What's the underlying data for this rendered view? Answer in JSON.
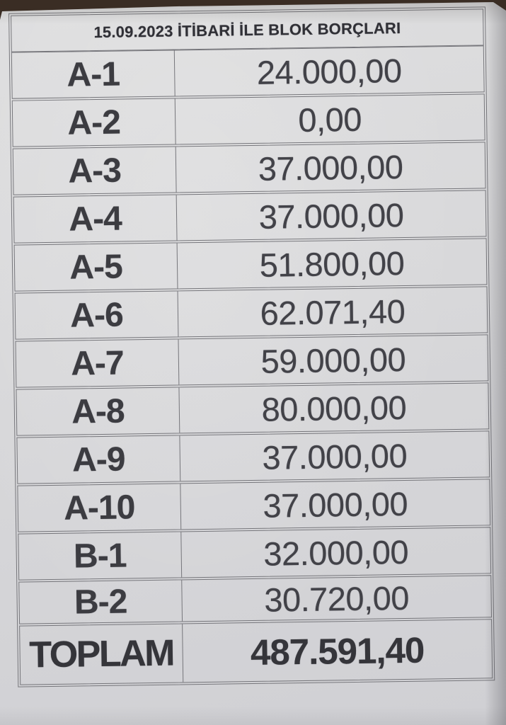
{
  "colors": {
    "background": "#3a2d24",
    "paper": "#d9d9db",
    "ink": "#3c3c41",
    "line": "#76767b"
  },
  "doc": {
    "title": "15.09.2023 İTİBARİ İLE BLOK BORÇLARI",
    "rows": [
      {
        "label": "A-1",
        "value": "24.000,00"
      },
      {
        "label": "A-2",
        "value": "0,00"
      },
      {
        "label": "A-3",
        "value": "37.000,00"
      },
      {
        "label": "A-4",
        "value": "37.000,00"
      },
      {
        "label": "A-5",
        "value": "51.800,00"
      },
      {
        "label": "A-6",
        "value": "62.071,40"
      },
      {
        "label": "A-7",
        "value": "59.000,00"
      },
      {
        "label": "A-8",
        "value": "80.000,00"
      },
      {
        "label": "A-9",
        "value": "37.000,00"
      },
      {
        "label": "A-10",
        "value": "37.000,00"
      },
      {
        "label": "B-1",
        "value": "32.000,00"
      },
      {
        "label": "B-2",
        "value": "30.720,00"
      }
    ],
    "total": {
      "label": "TOPLAM",
      "value": "487.591,40"
    }
  }
}
